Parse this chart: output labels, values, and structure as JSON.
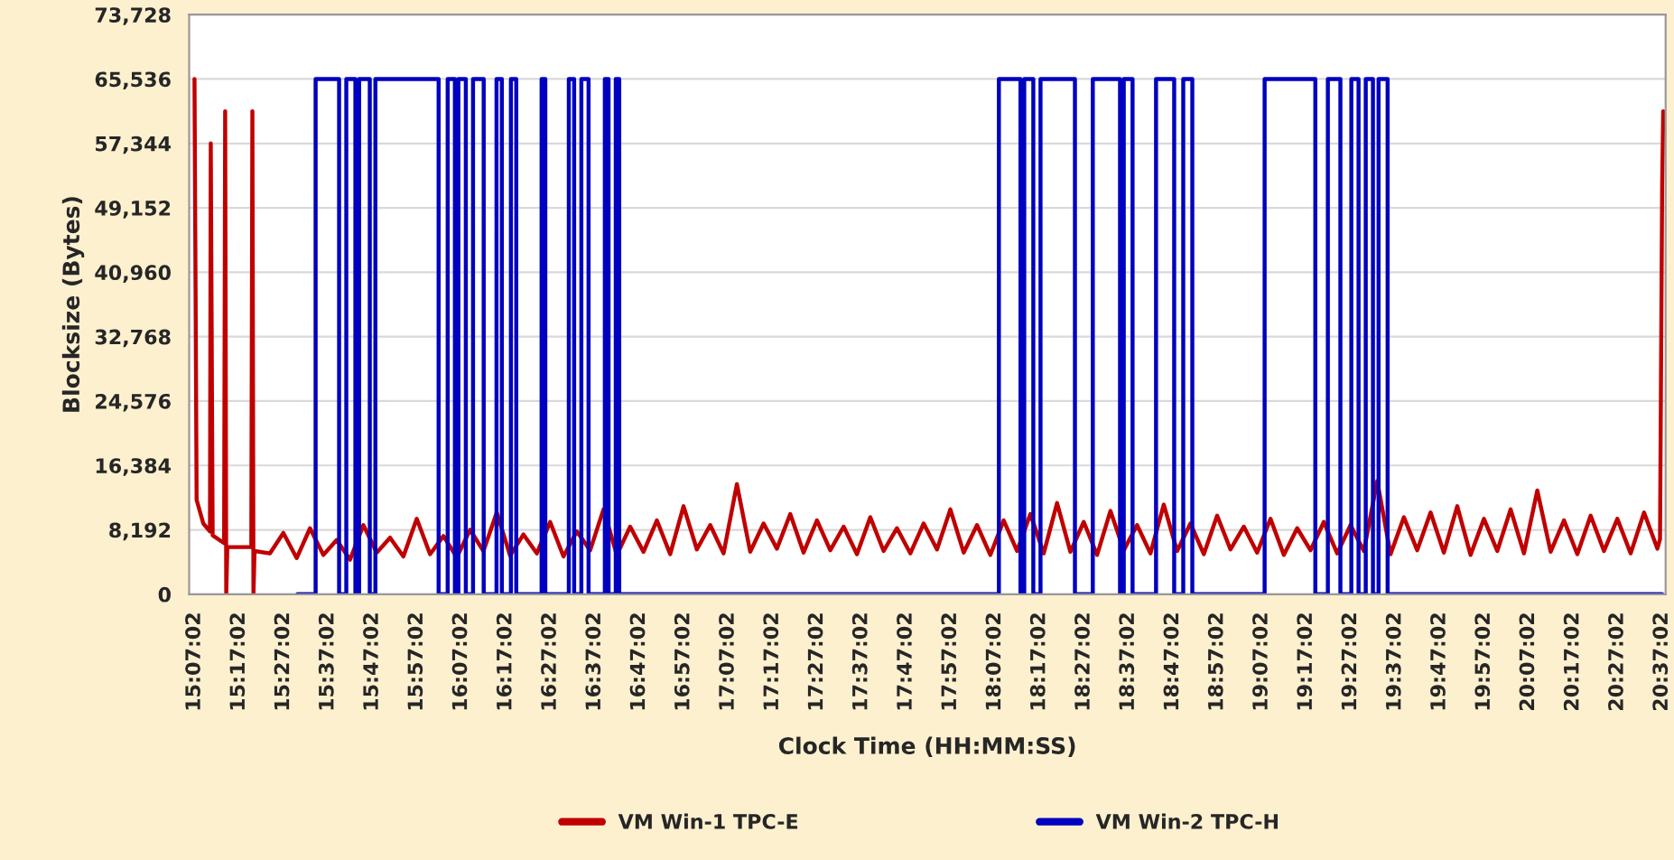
{
  "chart_data": {
    "type": "line",
    "xlabel": "Clock Time (HH:MM:SS)",
    "ylabel": "Blocksize (Bytes)",
    "xlim": [
      15.097,
      20.631
    ],
    "ylim": [
      0,
      73728
    ],
    "yticks": [
      0,
      {
        "value": 8192,
        "label": "8,192"
      },
      {
        "value": 16384,
        "label": "16,384"
      },
      {
        "value": 24576,
        "label": "24,576"
      },
      {
        "value": 32768,
        "label": "32,768"
      },
      {
        "value": 40960,
        "label": "40,960"
      },
      {
        "value": 49152,
        "label": "49,152"
      },
      {
        "value": 57344,
        "label": "57,344"
      },
      {
        "value": 65536,
        "label": "65,536"
      },
      {
        "value": 73728,
        "label": "73,728"
      }
    ],
    "xticks": [
      {
        "value": 15.1172,
        "label": "15:07:02"
      },
      {
        "value": 15.2839,
        "label": "15:17:02"
      },
      {
        "value": 15.4506,
        "label": "15:27:02"
      },
      {
        "value": 15.6172,
        "label": "15:37:02"
      },
      {
        "value": 15.7839,
        "label": "15:47:02"
      },
      {
        "value": 15.9506,
        "label": "15:57:02"
      },
      {
        "value": 16.1172,
        "label": "16:07:02"
      },
      {
        "value": 16.2839,
        "label": "16:17:02"
      },
      {
        "value": 16.4506,
        "label": "16:27:02"
      },
      {
        "value": 16.6172,
        "label": "16:37:02"
      },
      {
        "value": 16.7839,
        "label": "16:47:02"
      },
      {
        "value": 16.9506,
        "label": "16:57:02"
      },
      {
        "value": 17.1172,
        "label": "17:07:02"
      },
      {
        "value": 17.2839,
        "label": "17:17:02"
      },
      {
        "value": 17.4506,
        "label": "17:27:02"
      },
      {
        "value": 17.6172,
        "label": "17:37:02"
      },
      {
        "value": 17.7839,
        "label": "17:47:02"
      },
      {
        "value": 17.9506,
        "label": "17:57:02"
      },
      {
        "value": 18.1172,
        "label": "18:07:02"
      },
      {
        "value": 18.2839,
        "label": "18:17:02"
      },
      {
        "value": 18.4506,
        "label": "18:27:02"
      },
      {
        "value": 18.6172,
        "label": "18:37:02"
      },
      {
        "value": 18.7839,
        "label": "18:47:02"
      },
      {
        "value": 18.9506,
        "label": "18:57:02"
      },
      {
        "value": 19.1172,
        "label": "19:07:02"
      },
      {
        "value": 19.2839,
        "label": "19:17:02"
      },
      {
        "value": 19.4506,
        "label": "19:27:02"
      },
      {
        "value": 19.6172,
        "label": "19:37:02"
      },
      {
        "value": 19.7839,
        "label": "19:47:02"
      },
      {
        "value": 19.9506,
        "label": "19:57:02"
      },
      {
        "value": 20.1172,
        "label": "20:07:02"
      },
      {
        "value": 20.2839,
        "label": "20:17:02"
      },
      {
        "value": 20.4506,
        "label": "20:27:02"
      },
      {
        "value": 20.6172,
        "label": "20:37:02"
      }
    ],
    "grid": "y",
    "legend": "bottom",
    "marker": "none",
    "line_style": "solid",
    "series": [
      {
        "name": "VM Win-1 TPC-E",
        "color": "#c00000",
        "x": [
          15.117,
          15.125,
          15.15,
          15.175,
          15.178,
          15.185,
          15.228,
          15.232,
          15.236,
          15.24,
          15.33,
          15.334,
          15.338,
          15.342,
          15.4,
          15.45,
          15.5,
          15.55,
          15.6,
          15.65,
          15.7,
          15.75,
          15.8,
          15.85,
          15.9,
          15.95,
          16.0,
          16.05,
          16.1,
          16.15,
          16.2,
          16.25,
          16.3,
          16.35,
          16.4,
          16.45,
          16.5,
          16.55,
          16.6,
          16.65,
          16.7,
          16.75,
          16.8,
          16.85,
          16.9,
          16.95,
          17.0,
          17.05,
          17.1,
          17.15,
          17.2,
          17.25,
          17.3,
          17.35,
          17.4,
          17.45,
          17.5,
          17.55,
          17.6,
          17.65,
          17.7,
          17.75,
          17.8,
          17.85,
          17.9,
          17.95,
          18.0,
          18.05,
          18.1,
          18.15,
          18.2,
          18.25,
          18.3,
          18.35,
          18.4,
          18.45,
          18.5,
          18.55,
          18.6,
          18.65,
          18.7,
          18.75,
          18.8,
          18.85,
          18.9,
          18.95,
          19.0,
          19.05,
          19.1,
          19.15,
          19.2,
          19.25,
          19.3,
          19.35,
          19.4,
          19.45,
          19.5,
          19.55,
          19.6,
          19.65,
          19.7,
          19.75,
          19.8,
          19.85,
          19.9,
          19.95,
          20.0,
          20.05,
          20.1,
          20.15,
          20.2,
          20.25,
          20.3,
          20.35,
          20.4,
          20.45,
          20.5,
          20.55,
          20.6,
          20.61,
          20.618,
          20.622
        ],
        "values": [
          65536,
          12000,
          9000,
          8000,
          57344,
          7500,
          6500,
          61440,
          0,
          6000,
          6000,
          61440,
          0,
          5500,
          5200,
          7800,
          4600,
          8400,
          5000,
          6900,
          4400,
          8800,
          5300,
          7200,
          4800,
          9600,
          5100,
          7400,
          4700,
          8200,
          5500,
          10400,
          4900,
          7600,
          5200,
          9200,
          4800,
          8000,
          5600,
          10800,
          5000,
          8600,
          5400,
          9400,
          5100,
          11200,
          5700,
          8800,
          5200,
          14000,
          5400,
          9000,
          5800,
          10200,
          5300,
          9400,
          5600,
          8600,
          5100,
          9800,
          5500,
          8400,
          5200,
          9000,
          5700,
          10800,
          5300,
          8800,
          5000,
          9400,
          5500,
          10200,
          5200,
          11600,
          5400,
          9200,
          5000,
          10600,
          5600,
          8800,
          5200,
          11400,
          5500,
          9000,
          5100,
          10000,
          5700,
          8600,
          5300,
          9600,
          5000,
          8400,
          5600,
          9200,
          5200,
          8800,
          5500,
          14400,
          5100,
          9800,
          5600,
          10400,
          5300,
          11200,
          5000,
          9600,
          5500,
          10800,
          5200,
          13200,
          5400,
          9400,
          5100,
          10000,
          5500,
          9600,
          5200,
          10400,
          5800,
          7000,
          52000,
          61440
        ]
      },
      {
        "name": "VM Win-2 TPC-H",
        "color": "#0000c0",
        "x": [
          15.503,
          15.571,
          15.571,
          15.659,
          15.659,
          15.686,
          15.686,
          15.72,
          15.72,
          15.734,
          15.734,
          15.774,
          15.774,
          15.795,
          15.795,
          16.032,
          16.032,
          16.066,
          16.066,
          16.093,
          16.093,
          16.106,
          16.106,
          16.134,
          16.134,
          16.161,
          16.161,
          16.201,
          16.201,
          16.249,
          16.249,
          16.269,
          16.269,
          16.303,
          16.303,
          16.323,
          16.323,
          16.418,
          16.418,
          16.432,
          16.432,
          16.52,
          16.52,
          16.54,
          16.54,
          16.567,
          16.567,
          16.594,
          16.594,
          16.655,
          16.655,
          16.669,
          16.669,
          16.696,
          16.696,
          16.709,
          16.709,
          16.791,
          16.791,
          18.132,
          18.132,
          18.213,
          18.213,
          18.227,
          18.227,
          18.261,
          18.261,
          18.288,
          18.288,
          18.417,
          18.417,
          18.484,
          18.484,
          18.586,
          18.586,
          18.6,
          18.6,
          18.633,
          18.633,
          18.721,
          18.721,
          18.789,
          18.789,
          18.823,
          18.823,
          18.857,
          18.857,
          19.128,
          19.128,
          19.318,
          19.318,
          19.365,
          19.365,
          19.412,
          19.412,
          19.453,
          19.453,
          19.48,
          19.48,
          19.507,
          19.507,
          19.534,
          19.534,
          19.555,
          19.555,
          19.589,
          19.589,
          20.618
        ],
        "values": [
          0,
          0,
          65536,
          65536,
          0,
          0,
          65536,
          65536,
          0,
          0,
          65536,
          65536,
          0,
          0,
          65536,
          65536,
          0,
          0,
          65536,
          65536,
          0,
          0,
          65536,
          65536,
          0,
          0,
          65536,
          65536,
          0,
          0,
          65536,
          65536,
          0,
          0,
          65536,
          65536,
          0,
          0,
          65536,
          65536,
          0,
          0,
          65536,
          65536,
          0,
          0,
          65536,
          65536,
          0,
          0,
          65536,
          65536,
          0,
          0,
          65536,
          65536,
          0,
          0,
          0,
          0,
          65536,
          65536,
          0,
          0,
          65536,
          65536,
          0,
          0,
          65536,
          65536,
          0,
          0,
          65536,
          65536,
          0,
          0,
          65536,
          65536,
          0,
          0,
          65536,
          65536,
          0,
          0,
          65536,
          65536,
          0,
          0,
          65536,
          65536,
          0,
          0,
          65536,
          65536,
          0,
          0,
          65536,
          65536,
          0,
          0,
          65536,
          65536,
          0,
          0,
          65536,
          65536,
          0,
          0
        ]
      }
    ]
  }
}
